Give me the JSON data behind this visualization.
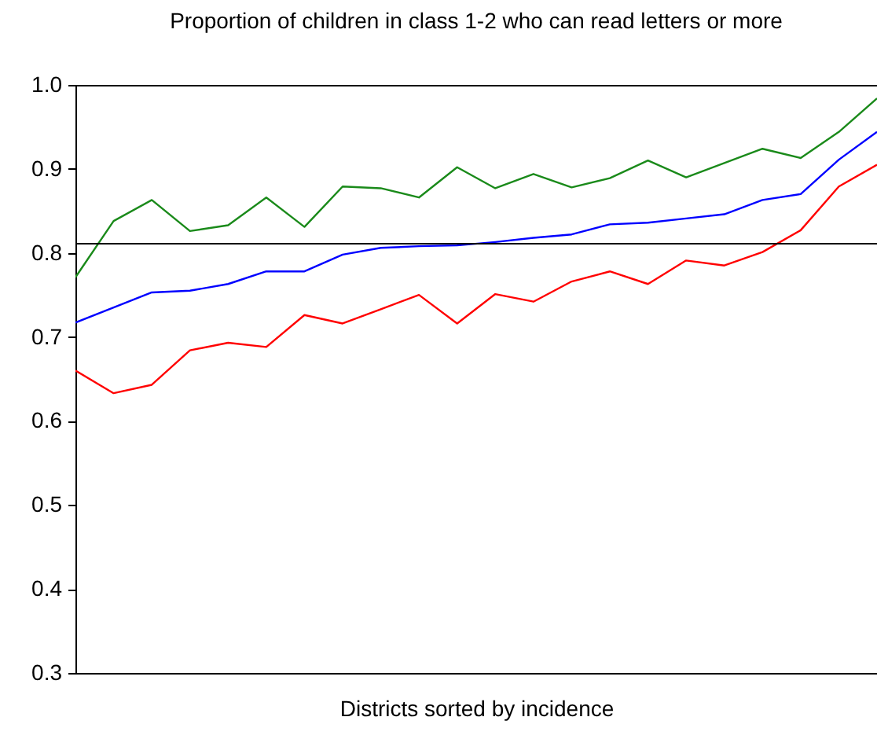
{
  "chart_data": {
    "type": "line",
    "title": "Proportion of children in class 1-2 who can read letters or more",
    "xlabel": "Districts sorted by incidence",
    "categories": [
      null,
      null,
      null,
      null,
      null,
      null,
      null,
      null,
      null,
      null,
      null,
      null,
      null,
      null,
      null,
      null,
      null,
      null,
      null,
      null,
      null,
      null
    ],
    "series": [
      {
        "color": "#1a8a1a",
        "values": [
          0.771,
          0.838,
          0.863,
          0.826,
          0.833,
          0.866,
          0.831,
          0.879,
          0.877,
          0.866,
          0.902,
          0.877,
          0.894,
          0.878,
          0.889,
          0.91,
          0.89,
          0.907,
          0.924,
          0.913,
          0.944,
          0.984
        ]
      },
      {
        "color": "#0000ff",
        "values": [
          0.717,
          0.735,
          0.753,
          0.755,
          0.763,
          0.778,
          0.778,
          0.798,
          0.806,
          0.808,
          0.809,
          0.813,
          0.818,
          0.822,
          0.834,
          0.836,
          0.841,
          0.846,
          0.863,
          0.87,
          0.911,
          0.944
        ]
      },
      {
        "color": "#ff0000",
        "values": [
          0.66,
          0.633,
          0.643,
          0.684,
          0.693,
          0.688,
          0.726,
          0.716,
          0.733,
          0.75,
          0.716,
          0.751,
          0.742,
          0.766,
          0.778,
          0.763,
          0.791,
          0.785,
          0.801,
          0.827,
          0.879,
          0.905
        ]
      }
    ],
    "ref_lines": [
      {
        "axis": "y",
        "value": 0.811,
        "color": "#000000"
      }
    ],
    "ylim": [
      0.3,
      1.0
    ],
    "yticks": [
      {
        "value": 0.3,
        "label": "0.3"
      },
      {
        "value": 0.4,
        "label": "0.4"
      },
      {
        "value": 0.5,
        "label": "0.5"
      },
      {
        "value": 0.6,
        "label": "0.6"
      },
      {
        "value": 0.7,
        "label": "0.7"
      },
      {
        "value": 0.8,
        "label": "0.8"
      },
      {
        "value": 0.9,
        "label": "0.9"
      },
      {
        "value": 1.0,
        "label": "1.0"
      }
    ],
    "tick_labels": "y",
    "grid": false,
    "legend": false,
    "marker": "none",
    "line_style": "solid"
  }
}
